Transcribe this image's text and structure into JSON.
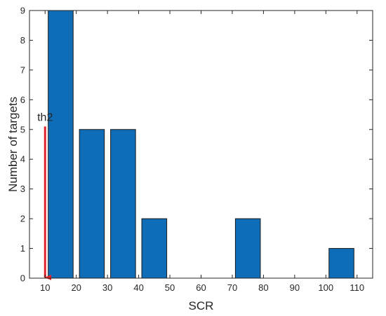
{
  "chart_data": {
    "type": "bar",
    "title": "",
    "xlabel": "SCR",
    "ylabel": "Number of targets",
    "xlim": [
      5,
      115
    ],
    "ylim": [
      0,
      9
    ],
    "xticks": [
      10,
      20,
      30,
      40,
      50,
      60,
      70,
      80,
      90,
      100,
      110
    ],
    "yticks": [
      0,
      1,
      2,
      3,
      4,
      5,
      6,
      7,
      8,
      9
    ],
    "bar_width": 8,
    "x": [
      15,
      25,
      35,
      45,
      55,
      65,
      75,
      85,
      95,
      105
    ],
    "values": [
      9,
      5,
      5,
      2,
      0,
      0,
      2,
      0,
      0,
      1
    ],
    "grid": false,
    "bar_color": "#0f6db8",
    "bar_edge_color": "#1a1a1a",
    "annotation": {
      "label": "th2",
      "x": 10,
      "y_top": 5.1,
      "y_bottom": 0,
      "color": "#e0242b"
    }
  }
}
